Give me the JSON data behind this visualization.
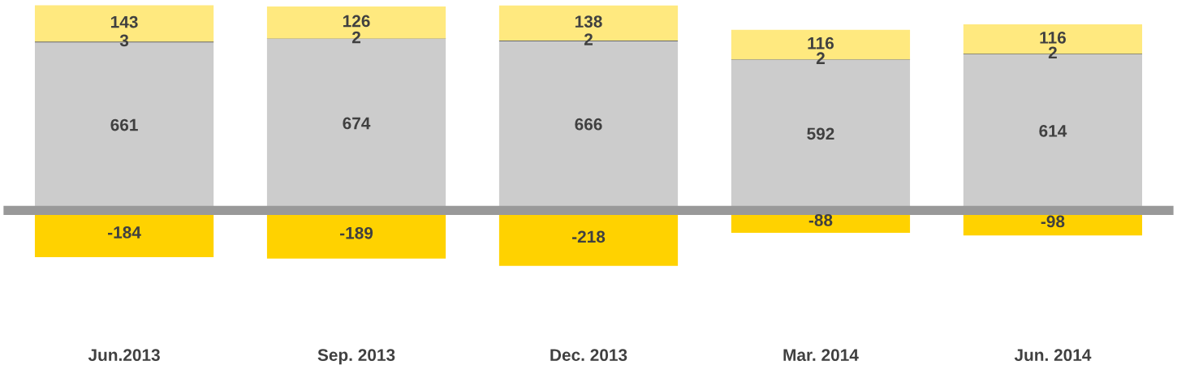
{
  "chart_data": {
    "type": "bar",
    "stacked": true,
    "data_labels": true,
    "categories": [
      "Jun.2013",
      "Sep. 2013",
      "Dec. 2013",
      "Mar. 2014",
      "Jun. 2014"
    ],
    "series": [
      {
        "color": "#cccccc",
        "values": [
          661,
          674,
          666,
          592,
          614
        ]
      },
      {
        "color": "#3a3a3a",
        "values": [
          3,
          2,
          2,
          2,
          2
        ]
      },
      {
        "color": "#ffe97f",
        "values": [
          143,
          126,
          138,
          116,
          116
        ]
      },
      {
        "color": "#ffd200",
        "values": [
          -184,
          -189,
          -218,
          -88,
          -98
        ]
      }
    ]
  }
}
